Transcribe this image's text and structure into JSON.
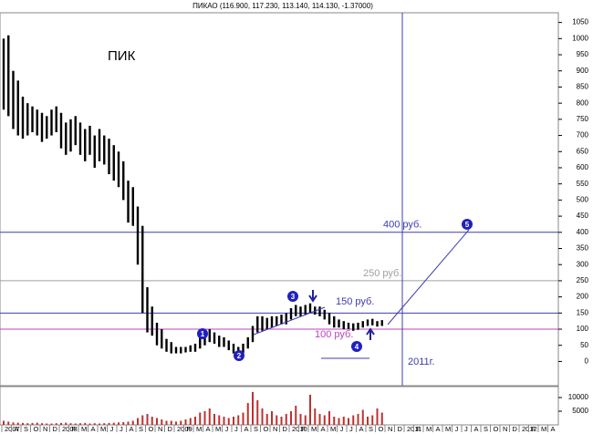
{
  "chart_data": {
    "type": "range-bar",
    "title": "ПИКАО (116.900, 117.230, 113.140, 114.130, -1.37000)",
    "label": "ПИК",
    "note": "2011г.",
    "annotations": [
      "1",
      "2",
      "3",
      "4",
      "5"
    ],
    "categories": [
      "2007",
      null,
      "A",
      null,
      "S",
      null,
      "O",
      null,
      "N",
      null,
      "D",
      null,
      "2008",
      null,
      "F",
      null,
      "M",
      null,
      "A",
      null,
      "M",
      null,
      "J",
      null,
      "J",
      null,
      "A",
      null,
      "S",
      null,
      "O",
      null,
      "N",
      null,
      "D",
      null,
      "2009",
      null,
      "F",
      null,
      "M",
      null,
      "A",
      null,
      "M",
      null,
      "J",
      null,
      "J",
      null,
      "A",
      null,
      "S",
      null,
      "O",
      null,
      "N",
      null,
      "D",
      null,
      "2010",
      null,
      "F",
      null,
      "M",
      null,
      "A",
      null,
      "M",
      null,
      "J",
      null,
      "J",
      null,
      "A",
      null,
      "S",
      null,
      "O",
      null,
      "N",
      null,
      "D",
      null,
      "2011",
      null,
      "F",
      null,
      "M",
      null,
      "A",
      null,
      "M",
      null,
      "J",
      null,
      "J",
      null,
      "A",
      null,
      "S",
      null,
      "O",
      null,
      "N",
      null,
      "D",
      null,
      "2012",
      null,
      "F",
      null,
      "M",
      null,
      "A",
      null
    ],
    "low": [
      780,
      760,
      720,
      700,
      690,
      700,
      710,
      700,
      680,
      690,
      700,
      710,
      660,
      640,
      650,
      670,
      640,
      620,
      640,
      600,
      620,
      610,
      580,
      560,
      540,
      500,
      430,
      420,
      300,
      150,
      90,
      80,
      50,
      40,
      30,
      25,
      25,
      25,
      28,
      30,
      30,
      40,
      50,
      60,
      55,
      45,
      45,
      35,
      25,
      20,
      25,
      40,
      60,
      90,
      95,
      100,
      105,
      110,
      115,
      115,
      130,
      140,
      140,
      145,
      150,
      145,
      140,
      130,
      115,
      105,
      105,
      100,
      100,
      95,
      98,
      105,
      110,
      112,
      108,
      110,
      null,
      null,
      null,
      null,
      null,
      null,
      null,
      null,
      null,
      null,
      null,
      null,
      null,
      null,
      null,
      null,
      null,
      null,
      null,
      null,
      null,
      null,
      null,
      null,
      null,
      null,
      null,
      null,
      null,
      null,
      null,
      null,
      null,
      null,
      null,
      null
    ],
    "high": [
      1000,
      1010,
      900,
      870,
      820,
      800,
      790,
      780,
      770,
      760,
      780,
      790,
      770,
      740,
      750,
      760,
      740,
      720,
      730,
      700,
      720,
      700,
      690,
      670,
      650,
      620,
      560,
      540,
      480,
      420,
      230,
      170,
      120,
      100,
      70,
      60,
      45,
      45,
      45,
      50,
      55,
      75,
      95,
      100,
      90,
      80,
      75,
      65,
      55,
      45,
      55,
      75,
      110,
      140,
      140,
      135,
      140,
      140,
      145,
      150,
      165,
      175,
      170,
      175,
      180,
      170,
      170,
      160,
      150,
      140,
      130,
      125,
      120,
      118,
      120,
      125,
      130,
      132,
      125,
      128,
      null,
      null,
      null,
      null,
      null,
      null,
      null,
      null,
      null,
      null,
      null,
      null,
      null,
      null,
      null,
      null,
      null,
      null,
      null,
      null,
      null,
      null,
      null,
      null,
      null,
      null,
      null,
      null,
      null,
      null,
      null,
      null,
      null,
      null,
      null,
      null
    ],
    "color": "#000000",
    "ylim": [
      -75,
      1080
    ],
    "yticks": [
      0,
      50,
      100,
      150,
      200,
      250,
      300,
      350,
      400,
      450,
      500,
      550,
      600,
      650,
      700,
      750,
      800,
      850,
      900,
      950,
      1000,
      1050
    ],
    "levels": [
      {
        "value": 400,
        "label": "400 руб.",
        "color": "#3c3cb4"
      },
      {
        "value": 250,
        "label": "250 руб.",
        "color": "#a0a0a0"
      },
      {
        "value": 150,
        "label": "150 руб.",
        "color": "#3c3cb4"
      },
      {
        "value": 100,
        "label": "100 руб.",
        "color": "#c040c0"
      }
    ],
    "volume": {
      "values": [
        1500,
        1200,
        900,
        800,
        700,
        600,
        700,
        800,
        600,
        500,
        500,
        600,
        700,
        800,
        600,
        500,
        600,
        700,
        500,
        600,
        500,
        600,
        700,
        800,
        900,
        1000,
        1200,
        1500,
        2500,
        3500,
        4000,
        3000,
        2500,
        2000,
        1500,
        1500,
        1200,
        1500,
        2000,
        2500,
        3000,
        4500,
        5000,
        6000,
        4000,
        3500,
        3000,
        2500,
        3000,
        3500,
        4500,
        8000,
        12000,
        9000,
        6000,
        4000,
        5000,
        3500,
        3000,
        4000,
        5000,
        7000,
        4000,
        3500,
        11000,
        6000,
        4000,
        3500,
        5000,
        3000,
        2500,
        3000,
        2500,
        3500,
        4000,
        5500,
        3000,
        3500,
        6000,
        4500,
        null,
        null,
        null,
        null,
        null,
        null,
        null,
        null,
        null,
        null,
        null,
        null,
        null,
        null,
        null,
        null,
        null,
        null,
        null,
        null,
        null,
        null,
        null,
        null,
        null,
        null,
        null,
        null,
        null,
        null,
        null,
        null,
        null,
        null,
        null,
        null
      ],
      "color": "#c03030",
      "ylim": [
        0,
        14000
      ],
      "yticks": [
        5000,
        10000
      ]
    }
  }
}
